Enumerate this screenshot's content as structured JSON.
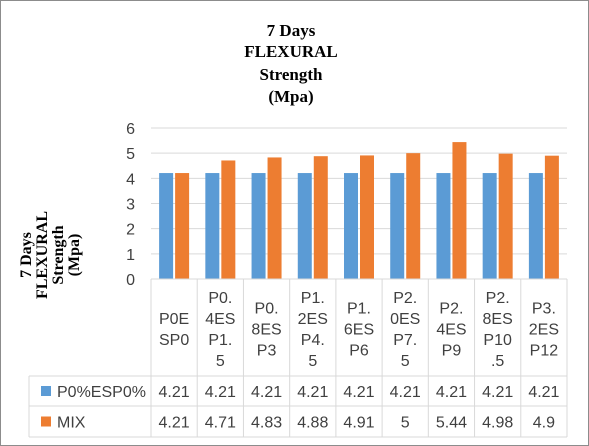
{
  "chart_data": {
    "type": "bar",
    "title_lines": [
      "7 Days",
      "FLEXURAL",
      "Strength",
      "(Mpa)"
    ],
    "ylabel_lines": [
      "7 Days",
      "FLEXURAL",
      "Strength",
      "(Mpa)"
    ],
    "xlabel": "",
    "ylim": [
      0,
      6
    ],
    "yticks": [
      0,
      1,
      2,
      3,
      4,
      5,
      6
    ],
    "grid": true,
    "legend": "data-table",
    "categories": [
      [
        "P0E",
        "SP0"
      ],
      [
        "P0.",
        "4ES",
        "P1.",
        "5"
      ],
      [
        "P0.",
        "8ES",
        "P3"
      ],
      [
        "P1.",
        "2ES",
        "P4.",
        "5"
      ],
      [
        "P1.",
        "6ES",
        "P6"
      ],
      [
        "P2.",
        "0ES",
        "P7.",
        "5"
      ],
      [
        "P2.",
        "4ES",
        "P9"
      ],
      [
        "P2.",
        "8ES",
        "P10",
        ".5"
      ],
      [
        "P3.",
        "2ES",
        "P12"
      ]
    ],
    "series": [
      {
        "name": "P0%ESP0%",
        "color": "#5b9bd5",
        "values": [
          4.21,
          4.21,
          4.21,
          4.21,
          4.21,
          4.21,
          4.21,
          4.21,
          4.21
        ],
        "labels": [
          "4.21",
          "4.21",
          "4.21",
          "4.21",
          "4.21",
          "4.21",
          "4.21",
          "4.21",
          "4.21"
        ]
      },
      {
        "name": "MIX",
        "color": "#ed7d31",
        "values": [
          4.21,
          4.71,
          4.83,
          4.88,
          4.91,
          5,
          5.44,
          4.98,
          4.9
        ],
        "labels": [
          "4.21",
          "4.71",
          "4.83",
          "4.88",
          "4.91",
          "5",
          "5.44",
          "4.98",
          "4.9"
        ]
      }
    ]
  }
}
